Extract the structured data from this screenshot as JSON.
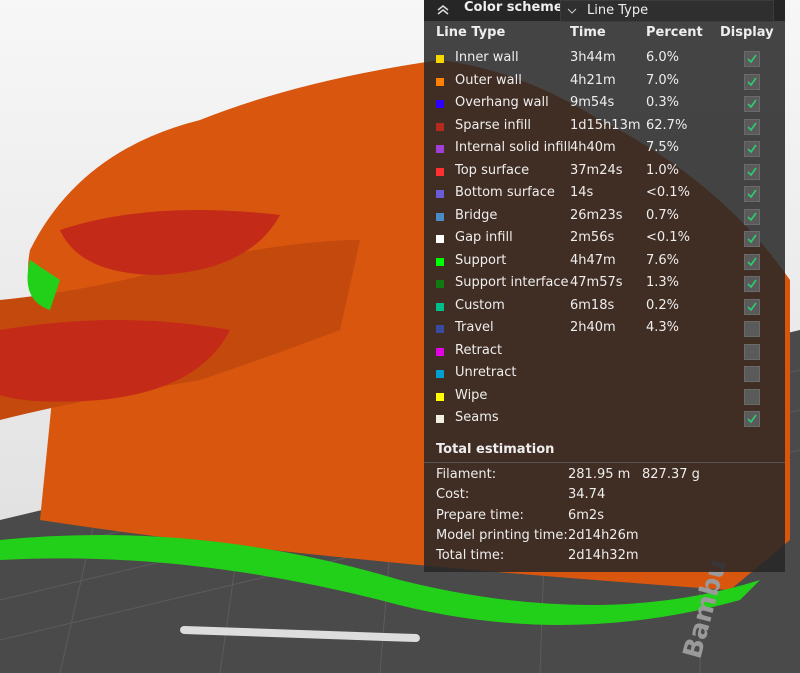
{
  "header": {
    "title": "Color scheme",
    "dropdown": "Line Type"
  },
  "bed_label": "Bambu",
  "table": {
    "columns": [
      "Line Type",
      "Time",
      "Percent",
      "Display"
    ],
    "rows": [
      {
        "name": "Inner wall",
        "color": "#f5d800",
        "time": "3h44m",
        "percent": "6.0%",
        "display": true
      },
      {
        "name": "Outer wall",
        "color": "#ff7f00",
        "time": "4h21m",
        "percent": "7.0%",
        "display": true
      },
      {
        "name": "Overhang wall",
        "color": "#2c00ff",
        "time": "9m54s",
        "percent": "0.3%",
        "display": true
      },
      {
        "name": "Sparse infill",
        "color": "#b52a1c",
        "time": "1d15h13m",
        "percent": "62.7%",
        "display": true
      },
      {
        "name": "Internal solid infill",
        "color": "#a13fd6",
        "time": "4h40m",
        "percent": "7.5%",
        "display": true
      },
      {
        "name": "Top surface",
        "color": "#ff3030",
        "time": "37m24s",
        "percent": "1.0%",
        "display": true
      },
      {
        "name": "Bottom surface",
        "color": "#6a5bd6",
        "time": "14s",
        "percent": "<0.1%",
        "display": true
      },
      {
        "name": "Bridge",
        "color": "#4a8cc8",
        "time": "26m23s",
        "percent": "0.7%",
        "display": true
      },
      {
        "name": "Gap infill",
        "color": "#ffffff",
        "time": "2m56s",
        "percent": "<0.1%",
        "display": true
      },
      {
        "name": "Support",
        "color": "#00ff00",
        "time": "4h47m",
        "percent": "7.6%",
        "display": true
      },
      {
        "name": "Support interface",
        "color": "#117a11",
        "time": "47m57s",
        "percent": "1.3%",
        "display": true
      },
      {
        "name": "Custom",
        "color": "#00c08a",
        "time": "6m18s",
        "percent": "0.2%",
        "display": true
      },
      {
        "name": "Travel",
        "color": "#3a4aa0",
        "time": "2h40m",
        "percent": "4.3%",
        "display": false
      },
      {
        "name": "Retract",
        "color": "#e000e0",
        "display": false
      },
      {
        "name": "Unretract",
        "color": "#00a0d0",
        "display": false
      },
      {
        "name": "Wipe",
        "color": "#ffff00",
        "display": false
      },
      {
        "name": "Seams",
        "color": "#f0f0e0",
        "display": true
      }
    ]
  },
  "total": {
    "title": "Total estimation",
    "rows": [
      {
        "label": "Filament:",
        "values": [
          "281.95 m",
          "827.37 g"
        ]
      },
      {
        "label": "Cost:",
        "values": [
          "34.74"
        ]
      },
      {
        "label": "Prepare time:",
        "values": [
          "6m2s"
        ]
      },
      {
        "label": "Model printing time:",
        "values": [
          "2d14h26m"
        ]
      },
      {
        "label": "Total time:",
        "values": [
          "2d14h32m"
        ]
      }
    ]
  }
}
